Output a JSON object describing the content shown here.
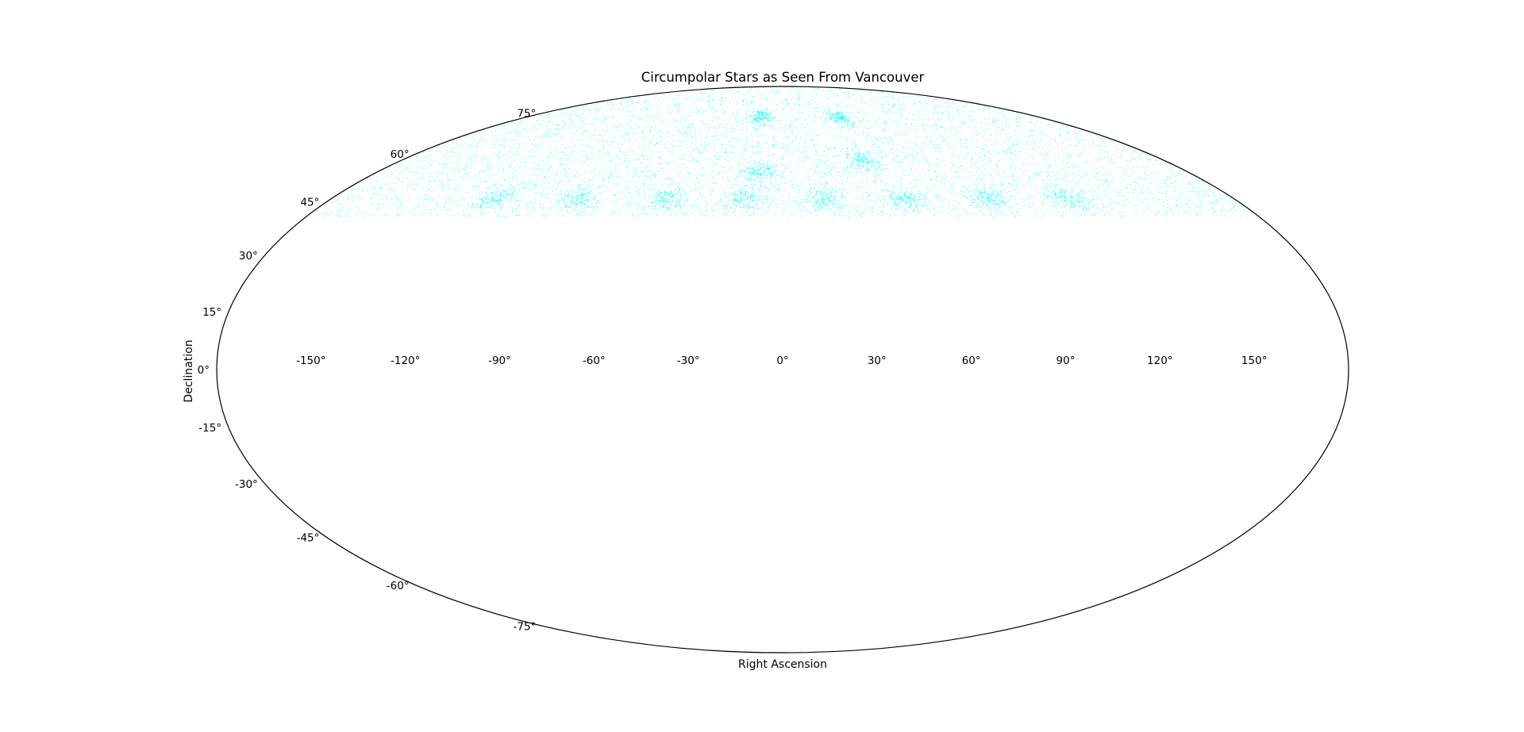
{
  "chart_data": {
    "type": "scatter",
    "projection": "mollweide",
    "title": "Circumpolar Stars as Seen From Vancouver",
    "xlabel": "Right Ascension",
    "ylabel": "Declination",
    "x_ticks": [
      "-150°",
      "-120°",
      "-90°",
      "-60°",
      "-30°",
      "0°",
      "30°",
      "60°",
      "90°",
      "120°",
      "150°"
    ],
    "y_ticks": [
      "-75°",
      "-60°",
      "-45°",
      "-30°",
      "-15°",
      "0°",
      "15°",
      "30°",
      "45°",
      "60°",
      "75°"
    ],
    "xlim": [
      -180,
      180
    ],
    "ylim": [
      -90,
      90
    ],
    "grid": false,
    "legend": "none",
    "marker_color": "#00ffff",
    "series": [
      {
        "dec_min": 40.7,
        "dec_max": 90,
        "ra_range": [
          -180,
          180
        ],
        "dense_clusters": [
          {
            "ra": -115,
            "dec": 46
          },
          {
            "ra": -81,
            "dec": 46
          },
          {
            "ra": -47,
            "dec": 46
          },
          {
            "ra": -15,
            "dec": 46
          },
          {
            "ra": 17,
            "dec": 46
          },
          {
            "ra": 49,
            "dec": 46
          },
          {
            "ra": 82,
            "dec": 46
          },
          {
            "ra": 114,
            "dec": 46
          },
          {
            "ra": 38,
            "dec": 58
          },
          {
            "ra": -15,
            "dec": 73
          },
          {
            "ra": 40,
            "dec": 73
          },
          {
            "ra": -10,
            "dec": 54
          }
        ]
      }
    ]
  }
}
